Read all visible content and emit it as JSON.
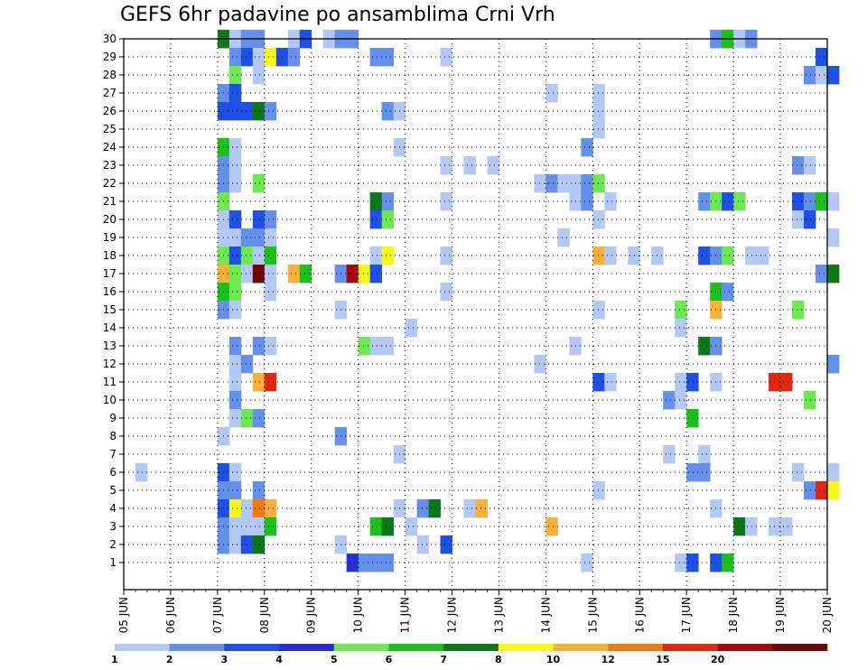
{
  "chart_data": {
    "type": "heatmap",
    "title": "GEFS 6hr padavine po ansamblima Crni Vrh",
    "y_ticks": [
      "1",
      "2",
      "3",
      "4",
      "5",
      "6",
      "7",
      "8",
      "9",
      "10",
      "11",
      "12",
      "13",
      "14",
      "15",
      "16",
      "17",
      "18",
      "19",
      "20",
      "21",
      "22",
      "23",
      "24",
      "25",
      "26",
      "27",
      "28",
      "29",
      "30"
    ],
    "x_ticks": [
      "05 JUN",
      "06 JUN",
      "07 JUN",
      "08 JUN",
      "09 JUN",
      "10 JUN",
      "11 JUN",
      "12 JUN",
      "13 JUN",
      "14 JUN",
      "15 JUN",
      "16 JUN",
      "17 JUN",
      "18 JUN",
      "19 JUN",
      "20 JUN"
    ],
    "x_step_hours": 6,
    "colorbar": {
      "labels": [
        "1",
        "2",
        "3",
        "4",
        "5",
        "6",
        "7",
        "8",
        "10",
        "12",
        "15",
        "20"
      ],
      "colors": [
        "#b4c8f5",
        "#6490ec",
        "#1e50e6",
        "#2a30d0",
        "#6ee850",
        "#1cc01c",
        "#0c7818",
        "#f8f818",
        "#f8b038",
        "#f07810",
        "#e02810",
        "#a00c0c",
        "#6e0808"
      ]
    },
    "grid": true,
    "cells": [
      [
        2.0,
        30,
        "#0c7818"
      ],
      [
        2.25,
        30,
        "#b4c8f5"
      ],
      [
        2.5,
        30,
        "#6490ec"
      ],
      [
        2.75,
        30,
        "#6490ec"
      ],
      [
        3.5,
        30,
        "#b4c8f5"
      ],
      [
        3.75,
        30,
        "#1e50e6"
      ],
      [
        4.25,
        30,
        "#b4c8f5"
      ],
      [
        4.5,
        30,
        "#6490ec"
      ],
      [
        4.75,
        30,
        "#6490ec"
      ],
      [
        12.5,
        30,
        "#6490ec"
      ],
      [
        12.75,
        30,
        "#1cc01c"
      ],
      [
        13.0,
        30,
        "#b4c8f5"
      ],
      [
        13.25,
        30,
        "#6490ec"
      ],
      [
        2.25,
        29,
        "#6490ec"
      ],
      [
        2.5,
        29,
        "#1e50e6"
      ],
      [
        2.75,
        29,
        "#b4c8f5"
      ],
      [
        3.0,
        29,
        "#f8f818"
      ],
      [
        3.25,
        29,
        "#1e50e6"
      ],
      [
        3.5,
        29,
        "#6490ec"
      ],
      [
        5.25,
        29,
        "#6490ec"
      ],
      [
        5.5,
        29,
        "#6490ec"
      ],
      [
        6.75,
        29,
        "#b4c8f5"
      ],
      [
        14.75,
        29,
        "#1e50e6"
      ],
      [
        2.25,
        28,
        "#6ee850"
      ],
      [
        2.75,
        28,
        "#b4c8f5"
      ],
      [
        14.5,
        28,
        "#6490ec"
      ],
      [
        14.75,
        28,
        "#b4c8f5"
      ],
      [
        15.0,
        28,
        "#1e50e6"
      ],
      [
        2.0,
        27,
        "#6490ec"
      ],
      [
        2.25,
        27,
        "#1e50e6"
      ],
      [
        9.0,
        27,
        "#b4c8f5"
      ],
      [
        10.0,
        27,
        "#b4c8f5"
      ],
      [
        2.0,
        26,
        "#1e50e6"
      ],
      [
        2.25,
        26,
        "#1e50e6"
      ],
      [
        2.5,
        26,
        "#1e50e6"
      ],
      [
        2.75,
        26,
        "#0c7818"
      ],
      [
        3.0,
        26,
        "#6490ec"
      ],
      [
        5.5,
        26,
        "#6490ec"
      ],
      [
        5.75,
        26,
        "#b4c8f5"
      ],
      [
        10.0,
        26,
        "#b4c8f5"
      ],
      [
        10.0,
        25,
        "#b4c8f5"
      ],
      [
        2.0,
        24,
        "#1cc01c"
      ],
      [
        2.25,
        24,
        "#b4c8f5"
      ],
      [
        5.75,
        24,
        "#b4c8f5"
      ],
      [
        9.75,
        24,
        "#6490ec"
      ],
      [
        2.0,
        23,
        "#6490ec"
      ],
      [
        2.25,
        23,
        "#b4c8f5"
      ],
      [
        6.75,
        23,
        "#b4c8f5"
      ],
      [
        7.25,
        23,
        "#b4c8f5"
      ],
      [
        7.75,
        23,
        "#b4c8f5"
      ],
      [
        14.25,
        23,
        "#6490ec"
      ],
      [
        14.5,
        23,
        "#b4c8f5"
      ],
      [
        2.0,
        22,
        "#6490ec"
      ],
      [
        2.25,
        22,
        "#b4c8f5"
      ],
      [
        2.75,
        22,
        "#6ee850"
      ],
      [
        8.75,
        22,
        "#b4c8f5"
      ],
      [
        9.0,
        22,
        "#6490ec"
      ],
      [
        9.25,
        22,
        "#b4c8f5"
      ],
      [
        9.5,
        22,
        "#b4c8f5"
      ],
      [
        9.75,
        22,
        "#6490ec"
      ],
      [
        10.0,
        22,
        "#6ee850"
      ],
      [
        2.0,
        21,
        "#6ee850"
      ],
      [
        5.25,
        21,
        "#0c7818"
      ],
      [
        5.5,
        21,
        "#6490ec"
      ],
      [
        6.75,
        21,
        "#b4c8f5"
      ],
      [
        9.5,
        21,
        "#b4c8f5"
      ],
      [
        9.75,
        21,
        "#6490ec"
      ],
      [
        10.25,
        21,
        "#b4c8f5"
      ],
      [
        12.25,
        21,
        "#6490ec"
      ],
      [
        12.5,
        21,
        "#6ee850"
      ],
      [
        12.75,
        21,
        "#1e50e6"
      ],
      [
        13.0,
        21,
        "#6ee850"
      ],
      [
        14.25,
        21,
        "#1e50e6"
      ],
      [
        14.5,
        21,
        "#6490ec"
      ],
      [
        14.75,
        21,
        "#1cc01c"
      ],
      [
        15.0,
        21,
        "#b4c8f5"
      ],
      [
        2.0,
        20,
        "#b4c8f5"
      ],
      [
        2.25,
        20,
        "#1e50e6"
      ],
      [
        2.75,
        20,
        "#1e50e6"
      ],
      [
        3.0,
        20,
        "#6490ec"
      ],
      [
        5.25,
        20,
        "#1e50e6"
      ],
      [
        5.5,
        20,
        "#6ee850"
      ],
      [
        10.0,
        20,
        "#b4c8f5"
      ],
      [
        14.25,
        20,
        "#b4c8f5"
      ],
      [
        14.5,
        20,
        "#1e50e6"
      ],
      [
        2.0,
        19,
        "#b4c8f5"
      ],
      [
        2.25,
        19,
        "#b4c8f5"
      ],
      [
        2.5,
        19,
        "#6490ec"
      ],
      [
        2.75,
        19,
        "#6490ec"
      ],
      [
        3.0,
        19,
        "#b4c8f5"
      ],
      [
        9.25,
        19,
        "#b4c8f5"
      ],
      [
        15.0,
        19,
        "#b4c8f5"
      ],
      [
        2.0,
        18,
        "#6ee850"
      ],
      [
        2.25,
        18,
        "#1e50e6"
      ],
      [
        2.5,
        18,
        "#6ee850"
      ],
      [
        2.75,
        18,
        "#b4c8f5"
      ],
      [
        3.0,
        18,
        "#1cc01c"
      ],
      [
        5.25,
        18,
        "#b4c8f5"
      ],
      [
        5.5,
        18,
        "#f8f818"
      ],
      [
        6.75,
        18,
        "#b4c8f5"
      ],
      [
        10.0,
        18,
        "#f8b038"
      ],
      [
        10.25,
        18,
        "#b4c8f5"
      ],
      [
        10.75,
        18,
        "#b4c8f5"
      ],
      [
        11.25,
        18,
        "#b4c8f5"
      ],
      [
        12.25,
        18,
        "#1e50e6"
      ],
      [
        12.5,
        18,
        "#6490ec"
      ],
      [
        12.75,
        18,
        "#6ee850"
      ],
      [
        13.25,
        18,
        "#b4c8f5"
      ],
      [
        13.5,
        18,
        "#b4c8f5"
      ],
      [
        2.0,
        17,
        "#f8b038"
      ],
      [
        2.25,
        17,
        "#6ee850"
      ],
      [
        2.5,
        17,
        "#b4c8f5"
      ],
      [
        2.75,
        17,
        "#6e0808"
      ],
      [
        3.0,
        17,
        "#b4c8f5"
      ],
      [
        3.5,
        17,
        "#f8b038"
      ],
      [
        3.75,
        17,
        "#1cc01c"
      ],
      [
        4.5,
        17,
        "#6490ec"
      ],
      [
        4.75,
        17,
        "#a00c0c"
      ],
      [
        5.0,
        17,
        "#f8f818"
      ],
      [
        5.25,
        17,
        "#1e50e6"
      ],
      [
        14.75,
        17,
        "#6490ec"
      ],
      [
        15.0,
        17,
        "#0c7818"
      ],
      [
        2.0,
        16,
        "#1cc01c"
      ],
      [
        2.25,
        16,
        "#6ee850"
      ],
      [
        3.0,
        16,
        "#b4c8f5"
      ],
      [
        6.75,
        16,
        "#b4c8f5"
      ],
      [
        12.5,
        16,
        "#1cc01c"
      ],
      [
        12.75,
        16,
        "#6490ec"
      ],
      [
        2.0,
        15,
        "#6490ec"
      ],
      [
        2.25,
        15,
        "#b4c8f5"
      ],
      [
        4.5,
        15,
        "#b4c8f5"
      ],
      [
        10.0,
        15,
        "#b4c8f5"
      ],
      [
        11.75,
        15,
        "#6ee850"
      ],
      [
        12.5,
        15,
        "#f8b038"
      ],
      [
        14.25,
        15,
        "#6ee850"
      ],
      [
        6.0,
        14,
        "#b4c8f5"
      ],
      [
        11.75,
        14,
        "#b4c8f5"
      ],
      [
        2.25,
        13,
        "#6490ec"
      ],
      [
        2.75,
        13,
        "#6490ec"
      ],
      [
        3.0,
        13,
        "#b4c8f5"
      ],
      [
        5.0,
        13,
        "#6ee850"
      ],
      [
        5.25,
        13,
        "#b4c8f5"
      ],
      [
        5.5,
        13,
        "#b4c8f5"
      ],
      [
        9.5,
        13,
        "#b4c8f5"
      ],
      [
        12.25,
        13,
        "#0c7818"
      ],
      [
        12.5,
        13,
        "#6490ec"
      ],
      [
        2.25,
        12,
        "#b4c8f5"
      ],
      [
        2.5,
        12,
        "#6490ec"
      ],
      [
        8.75,
        12,
        "#b4c8f5"
      ],
      [
        15.0,
        12,
        "#6490ec"
      ],
      [
        2.25,
        11,
        "#b4c8f5"
      ],
      [
        2.75,
        11,
        "#f8b038"
      ],
      [
        3.0,
        11,
        "#e02810"
      ],
      [
        10.0,
        11,
        "#1e50e6"
      ],
      [
        10.25,
        11,
        "#b4c8f5"
      ],
      [
        11.75,
        11,
        "#b4c8f5"
      ],
      [
        12.0,
        11,
        "#1e50e6"
      ],
      [
        12.5,
        11,
        "#b4c8f5"
      ],
      [
        13.75,
        11,
        "#e02810"
      ],
      [
        14.0,
        11,
        "#e02810"
      ],
      [
        2.25,
        10,
        "#6490ec"
      ],
      [
        11.5,
        10,
        "#6490ec"
      ],
      [
        11.75,
        10,
        "#b4c8f5"
      ],
      [
        14.5,
        10,
        "#6ee850"
      ],
      [
        2.25,
        9,
        "#b4c8f5"
      ],
      [
        2.5,
        9,
        "#6ee850"
      ],
      [
        2.75,
        9,
        "#6490ec"
      ],
      [
        12.0,
        9,
        "#1cc01c"
      ],
      [
        2.0,
        8,
        "#b4c8f5"
      ],
      [
        4.5,
        8,
        "#6490ec"
      ],
      [
        5.75,
        7,
        "#b4c8f5"
      ],
      [
        11.5,
        7,
        "#b4c8f5"
      ],
      [
        12.25,
        7,
        "#b4c8f5"
      ],
      [
        0.25,
        6,
        "#b4c8f5"
      ],
      [
        2.0,
        6,
        "#1e50e6"
      ],
      [
        2.25,
        6,
        "#b4c8f5"
      ],
      [
        12.0,
        6,
        "#6490ec"
      ],
      [
        12.25,
        6,
        "#6490ec"
      ],
      [
        14.25,
        6,
        "#b4c8f5"
      ],
      [
        15.0,
        6,
        "#b4c8f5"
      ],
      [
        2.0,
        5,
        "#6490ec"
      ],
      [
        2.25,
        5,
        "#6490ec"
      ],
      [
        2.75,
        5,
        "#6490ec"
      ],
      [
        10.0,
        5,
        "#b4c8f5"
      ],
      [
        14.5,
        5,
        "#6490ec"
      ],
      [
        14.75,
        5,
        "#e02810"
      ],
      [
        15.0,
        5,
        "#f8f818"
      ],
      [
        2.0,
        4,
        "#1e50e6"
      ],
      [
        2.25,
        4,
        "#f8f818"
      ],
      [
        2.5,
        4,
        "#b4c8f5"
      ],
      [
        2.75,
        4,
        "#f07810"
      ],
      [
        3.0,
        4,
        "#f8b038"
      ],
      [
        5.75,
        4,
        "#b4c8f5"
      ],
      [
        6.25,
        4,
        "#6490ec"
      ],
      [
        6.5,
        4,
        "#0c7818"
      ],
      [
        7.25,
        4,
        "#b4c8f5"
      ],
      [
        7.5,
        4,
        "#f8b038"
      ],
      [
        12.5,
        4,
        "#b4c8f5"
      ],
      [
        2.0,
        3,
        "#6490ec"
      ],
      [
        2.25,
        3,
        "#b4c8f5"
      ],
      [
        2.5,
        3,
        "#b4c8f5"
      ],
      [
        2.75,
        3,
        "#b4c8f5"
      ],
      [
        3.0,
        3,
        "#1cc01c"
      ],
      [
        5.25,
        3,
        "#1cc01c"
      ],
      [
        5.5,
        3,
        "#0c7818"
      ],
      [
        6.0,
        3,
        "#b4c8f5"
      ],
      [
        9.0,
        3,
        "#f8b038"
      ],
      [
        13.0,
        3,
        "#0c7818"
      ],
      [
        13.25,
        3,
        "#b4c8f5"
      ],
      [
        13.75,
        3,
        "#b4c8f5"
      ],
      [
        14.0,
        3,
        "#b4c8f5"
      ],
      [
        2.0,
        2,
        "#6490ec"
      ],
      [
        2.25,
        2,
        "#b4c8f5"
      ],
      [
        2.5,
        2,
        "#1e50e6"
      ],
      [
        2.75,
        2,
        "#0c7818"
      ],
      [
        4.5,
        2,
        "#b4c8f5"
      ],
      [
        6.25,
        2,
        "#b4c8f5"
      ],
      [
        6.75,
        2,
        "#1e50e6"
      ],
      [
        4.75,
        1,
        "#2a30d0"
      ],
      [
        5.0,
        1,
        "#6490ec"
      ],
      [
        5.25,
        1,
        "#6490ec"
      ],
      [
        5.5,
        1,
        "#6490ec"
      ],
      [
        9.75,
        1,
        "#b4c8f5"
      ],
      [
        11.75,
        1,
        "#b4c8f5"
      ],
      [
        12.0,
        1,
        "#1e50e6"
      ],
      [
        12.5,
        1,
        "#1e50e6"
      ],
      [
        12.75,
        1,
        "#1cc01c"
      ]
    ]
  }
}
